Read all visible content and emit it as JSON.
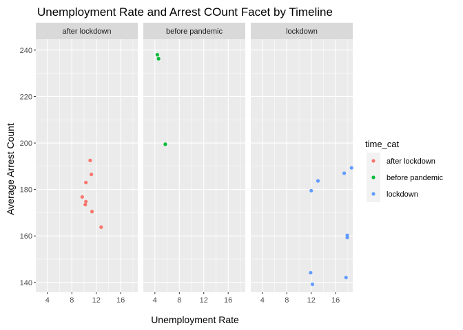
{
  "chart_data": {
    "type": "scatter",
    "title": "Unemployment Rate and Arrest COunt Facet by Timeline",
    "xlabel": "Unemployment Rate",
    "ylabel": "Average Arrest Count",
    "xlim": [
      2.1,
      18.8
    ],
    "ylim": [
      135.8,
      244.7
    ],
    "x_ticks": [
      4,
      8,
      12,
      16
    ],
    "y_ticks": [
      140,
      160,
      180,
      200,
      220,
      240
    ],
    "grid": true,
    "legend": {
      "title": "time_cat",
      "placement": "right",
      "entries": [
        "after lockdown",
        "before pandemic",
        "lockdown"
      ]
    },
    "facets": [
      {
        "label": "after lockdown",
        "series": "after lockdown",
        "color": "#F8766D",
        "points": [
          {
            "x": 11.0,
            "y": 192.5
          },
          {
            "x": 11.2,
            "y": 186.5
          },
          {
            "x": 10.3,
            "y": 183.0
          },
          {
            "x": 9.7,
            "y": 176.8
          },
          {
            "x": 10.3,
            "y": 174.8
          },
          {
            "x": 10.2,
            "y": 173.5
          },
          {
            "x": 11.3,
            "y": 170.5
          },
          {
            "x": 12.8,
            "y": 163.8
          }
        ]
      },
      {
        "label": "before pandemic",
        "series": "before pandemic",
        "color": "#00BA38",
        "points": [
          {
            "x": 4.4,
            "y": 238.0
          },
          {
            "x": 4.6,
            "y": 236.3
          },
          {
            "x": 5.7,
            "y": 199.5
          }
        ]
      },
      {
        "label": "lockdown",
        "series": "lockdown",
        "color": "#619CFF",
        "points": [
          {
            "x": 18.6,
            "y": 189.3
          },
          {
            "x": 17.4,
            "y": 187.0
          },
          {
            "x": 13.1,
            "y": 183.7
          },
          {
            "x": 12.0,
            "y": 179.5
          },
          {
            "x": 17.9,
            "y": 160.3
          },
          {
            "x": 17.9,
            "y": 159.3
          },
          {
            "x": 11.9,
            "y": 144.2
          },
          {
            "x": 17.7,
            "y": 142.1
          },
          {
            "x": 12.2,
            "y": 139.2
          }
        ]
      }
    ]
  }
}
